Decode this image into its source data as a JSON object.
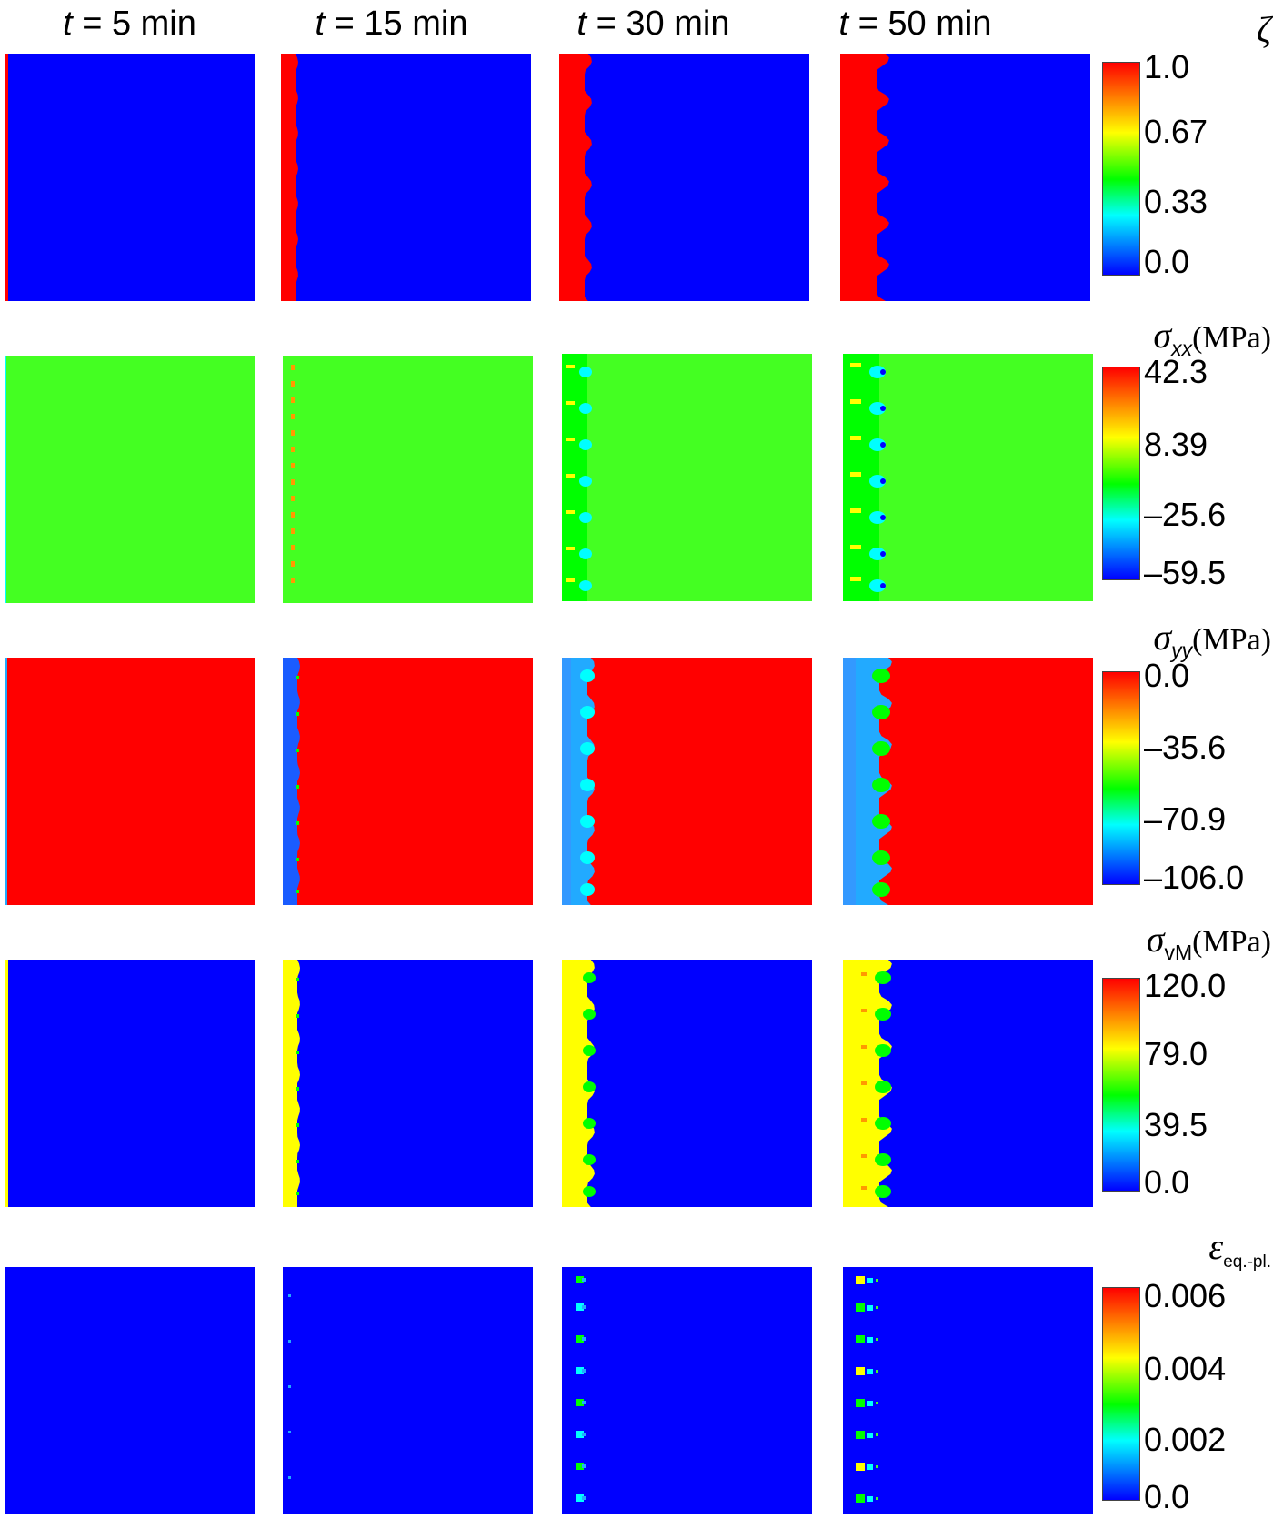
{
  "column_titles": [
    {
      "var": "t",
      "rest": " = 5 min"
    },
    {
      "var": "t",
      "rest": " = 15 min"
    },
    {
      "var": "t",
      "rest": " = 30 min"
    },
    {
      "var": "t",
      "rest": " = 50 min"
    }
  ],
  "rows": [
    {
      "symbol": "ζ",
      "sub": "",
      "sub_italic": false,
      "unit": "",
      "ticks": [
        "1.0",
        "0.67",
        "0.33",
        "0.0"
      ]
    },
    {
      "symbol": "σ",
      "sub": "xx",
      "sub_italic": true,
      "unit": "(MPa)",
      "ticks": [
        "42.3",
        "8.39",
        "–25.6",
        "–59.5"
      ]
    },
    {
      "symbol": "σ",
      "sub": "yy",
      "sub_italic": true,
      "unit": "(MPa)",
      "ticks": [
        "0.0",
        "–35.6",
        "–70.9",
        "–106.0"
      ]
    },
    {
      "symbol": "σ",
      "sub": "vM",
      "sub_italic": false,
      "unit": "(MPa)",
      "ticks": [
        "120.0",
        "79.0",
        "39.5",
        "0.0"
      ]
    },
    {
      "symbol": "ε",
      "sub": "eq.-pl.",
      "sub_italic": false,
      "unit": "",
      "ticks": [
        "0.006",
        "0.004",
        "0.002",
        "0.0"
      ]
    }
  ],
  "colors": {
    "red": "#ff0000",
    "yellow": "#ffff00",
    "green": "#00ff00",
    "light_green": "#44ff22",
    "cyan": "#00ffff",
    "light_blue": "#22aaff",
    "blue": "#0000ff",
    "orange": "#ff9900"
  }
}
